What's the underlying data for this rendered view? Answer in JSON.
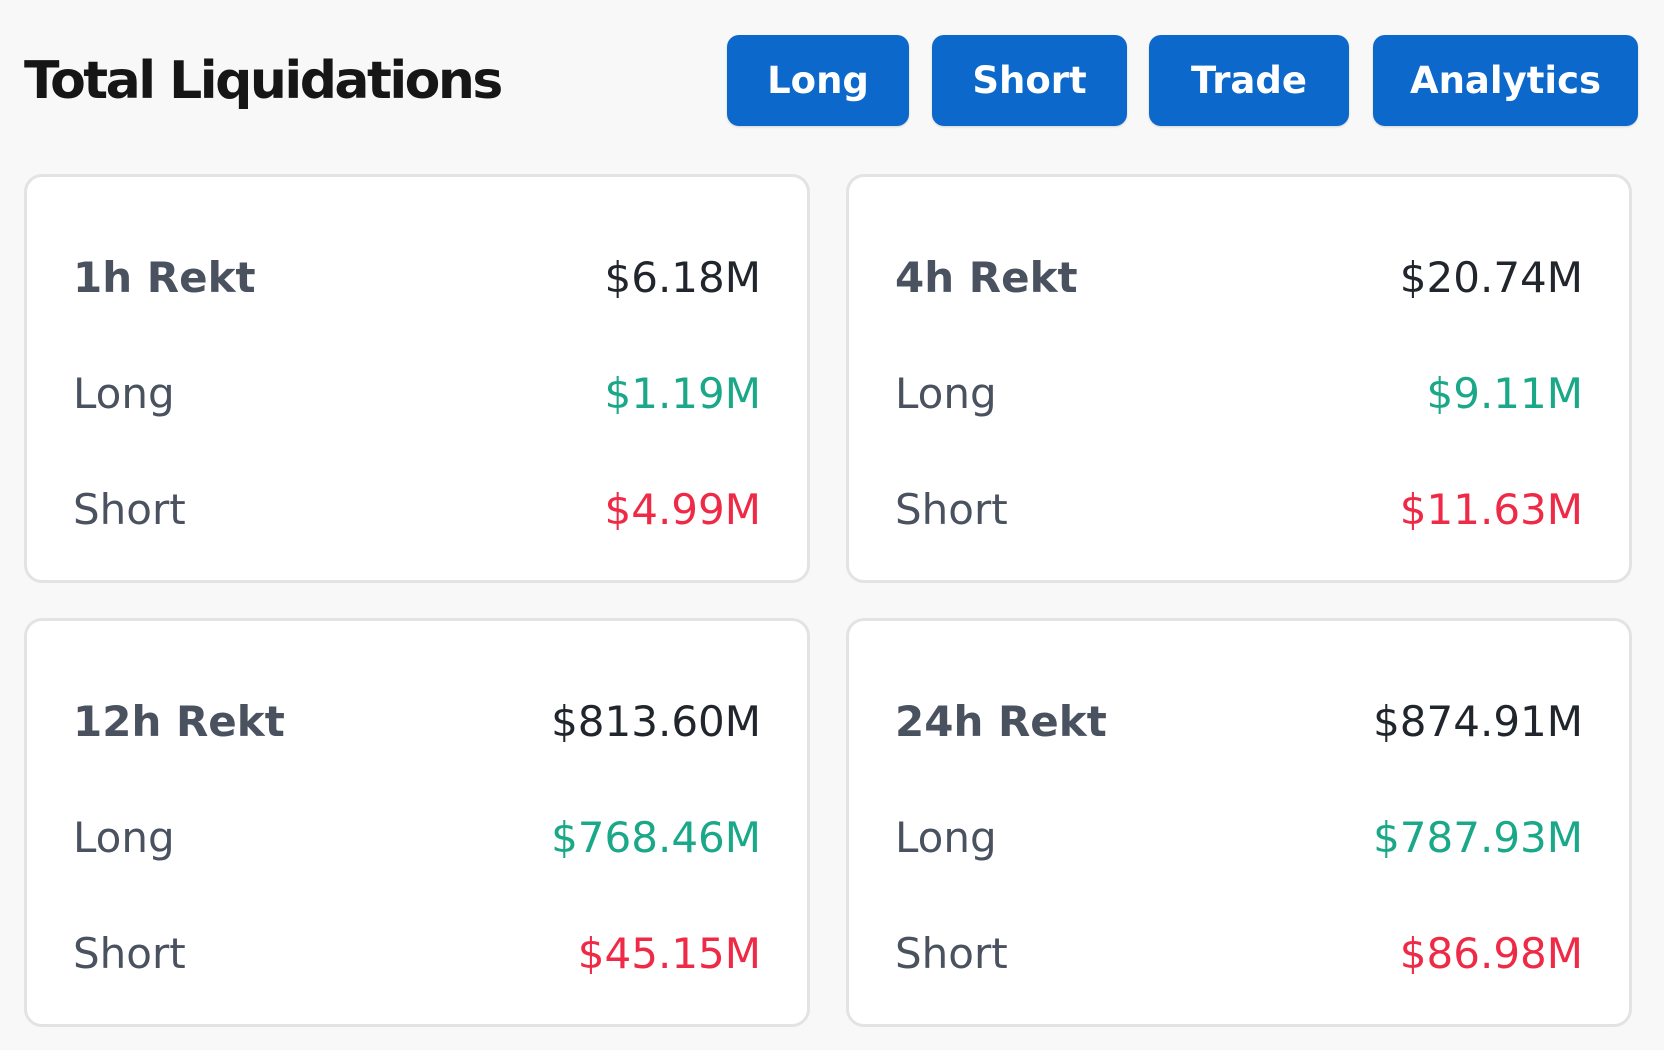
{
  "header": {
    "title": "Total Liquidations",
    "tabs": [
      "Long",
      "Short",
      "Trade",
      "Analytics"
    ]
  },
  "colors": {
    "accent": "#0c68cb",
    "long": "#1ba888",
    "short": "#ee2a46",
    "text": "#21252c",
    "label": "#4a5260"
  },
  "cards": [
    {
      "title": "1h Rekt",
      "total": "$6.18M",
      "long_label": "Long",
      "long": "$1.19M",
      "short_label": "Short",
      "short": "$4.99M"
    },
    {
      "title": "4h Rekt",
      "total": "$20.74M",
      "long_label": "Long",
      "long": "$9.11M",
      "short_label": "Short",
      "short": "$11.63M"
    },
    {
      "title": "12h Rekt",
      "total": "$813.60M",
      "long_label": "Long",
      "long": "$768.46M",
      "short_label": "Short",
      "short": "$45.15M"
    },
    {
      "title": "24h Rekt",
      "total": "$874.91M",
      "long_label": "Long",
      "long": "$787.93M",
      "short_label": "Short",
      "short": "$86.98M"
    }
  ]
}
